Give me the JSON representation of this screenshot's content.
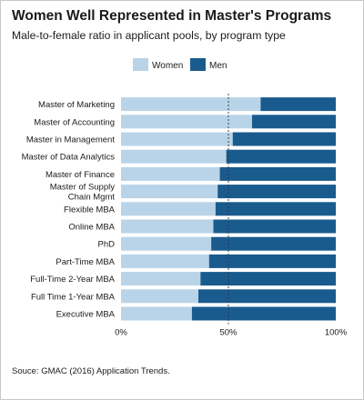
{
  "title": "Women Well Represented in Master's Programs",
  "subtitle": "Male-to-female ratio in applicant pools, by program type",
  "source": "Souce: GMAC (2016) Application Trends.",
  "colors": {
    "women": "#b9d4e8",
    "men": "#1a5b8e",
    "reference_line": "#333333"
  },
  "chart_data": {
    "type": "bar",
    "orientation": "horizontal",
    "stacked": true,
    "categories": [
      "Master of Marketing",
      "Master of Accounting",
      "Master in Management",
      "Master of Data Analytics",
      "Master of Finance",
      "Master of Supply Chain Mgmt",
      "Flexible MBA",
      "Online MBA",
      "PhD",
      "Part-Time MBA",
      "Full-Time  2-Year MBA",
      "Full Time 1-Year MBA",
      "Executive MBA"
    ],
    "category_label_lines": [
      [
        "Master of Marketing"
      ],
      [
        "Master of Accounting"
      ],
      [
        "Master in Management"
      ],
      [
        "Master of Data Analytics"
      ],
      [
        "Master of Finance"
      ],
      [
        "Master of Supply",
        "Chain Mgmt"
      ],
      [
        "Flexible MBA"
      ],
      [
        "Online MBA"
      ],
      [
        "PhD"
      ],
      [
        "Part-Time MBA"
      ],
      [
        "Full-Time  2-Year MBA"
      ],
      [
        "Full Time 1-Year MBA"
      ],
      [
        "Executive MBA"
      ]
    ],
    "series": [
      {
        "name": "Women",
        "values": [
          65,
          61,
          52,
          49,
          46,
          45,
          44,
          43,
          42,
          41,
          37,
          36,
          33
        ]
      },
      {
        "name": "Men",
        "values": [
          35,
          39,
          48,
          51,
          54,
          55,
          56,
          57,
          58,
          59,
          63,
          64,
          67
        ]
      }
    ],
    "xlim": [
      0,
      100
    ],
    "x_ticks": [
      0,
      50,
      100
    ],
    "x_tick_labels": [
      "0%",
      "50%",
      "100%"
    ],
    "reference_line": 50,
    "xlabel": "",
    "ylabel": "",
    "grid": false,
    "legend_position": "top-center"
  }
}
